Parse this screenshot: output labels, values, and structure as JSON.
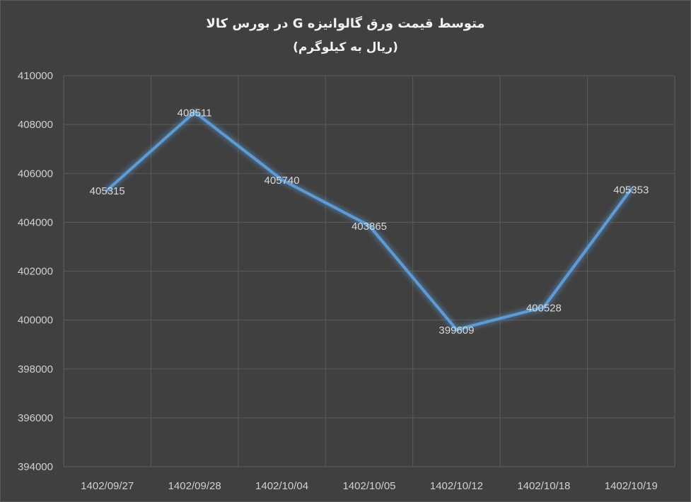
{
  "chart_data": {
    "type": "line",
    "title": "متوسط قیمت ورق گالوانیزه G در بورس کالا",
    "subtitle": "(ریال به کیلوگرم)",
    "categories": [
      "1402/09/27",
      "1402/09/28",
      "1402/10/04",
      "1402/10/05",
      "1402/10/12",
      "1402/10/18",
      "1402/10/19"
    ],
    "series": [
      {
        "values": [
          405315,
          408511,
          405740,
          403865,
          399609,
          400528,
          405353
        ]
      }
    ],
    "data_labels": [
      "405315",
      "408511",
      "405740",
      "403865",
      "399609",
      "400528",
      "405353"
    ],
    "ylim": [
      394000,
      410000
    ],
    "yticks": [
      394000,
      396000,
      398000,
      400000,
      402000,
      404000,
      406000,
      408000,
      410000
    ],
    "ytick_labels": [
      "394000",
      "396000",
      "398000",
      "400000",
      "402000",
      "404000",
      "406000",
      "408000",
      "410000"
    ],
    "grid": true,
    "line_color": "#5b9bd5",
    "background_color": "#404040"
  }
}
